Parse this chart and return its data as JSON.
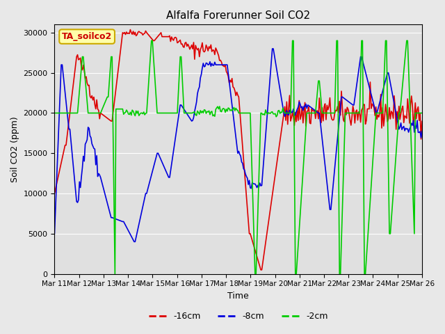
{
  "title": "Alfalfa Forerunner Soil CO2",
  "xlabel": "Time",
  "ylabel": "Soil CO2 (ppm)",
  "ylim": [
    0,
    31000
  ],
  "yticks": [
    0,
    5000,
    10000,
    15000,
    20000,
    25000,
    30000
  ],
  "legend_labels": [
    "-16cm",
    "-8cm",
    "-2cm"
  ],
  "legend_colors": [
    "#dd0000",
    "#0000dd",
    "#00cc00"
  ],
  "annotation_text": "TA_soilco2",
  "annotation_box_color": "#ffffaa",
  "annotation_border_color": "#ccaa00",
  "background_color": "#e8e8e8",
  "plot_bg_color": "#e0e0e0",
  "xtick_labels": [
    "Mar 11",
    "Mar 12",
    "Mar 13",
    "Mar 14",
    "Mar 15",
    "Mar 16",
    "Mar 17",
    "Mar 18",
    "Mar 19",
    "Mar 20",
    "Mar 21",
    "Mar 22",
    "Mar 23",
    "Mar 24",
    "Mar 25",
    "Mar 26"
  ],
  "n_days": 15,
  "n_points_per_day": 24
}
